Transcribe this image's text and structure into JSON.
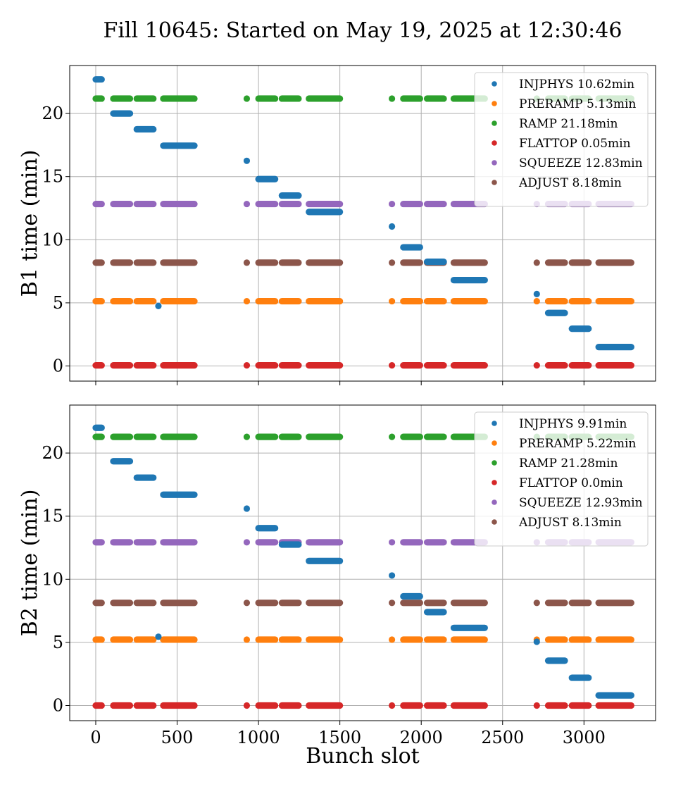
{
  "figure_title": "Fill 10645: Started on May 19, 2025 at 12:30:46",
  "xlabel": "Bunch slot",
  "colors": {
    "INJPHYS": "#1f77b4",
    "PRERAMP": "#ff7f0e",
    "RAMP": "#2ca02c",
    "FLATTOP": "#d62728",
    "SQUEEZE": "#9467bd",
    "ADJUST": "#8c564b"
  },
  "chart_data": [
    {
      "type": "scatter",
      "ylabel": "B1 time (min)",
      "xlim": [
        -160,
        3440
      ],
      "ylim": [
        -1.2,
        23.8
      ],
      "xticks": [
        0,
        500,
        1000,
        1500,
        2000,
        2500,
        3000
      ],
      "yticks": [
        0,
        5,
        10,
        15,
        20
      ],
      "grid": true,
      "legend_position": "upper right",
      "legend": [
        "INJPHYS 10.62min",
        "PRERAMP 5.13min",
        "RAMP 21.18min",
        "FLATTOP 0.05min",
        "SQUEEZE 12.83min",
        "ADJUST 8.18min"
      ],
      "series": [
        {
          "name": "INJPHYS",
          "segments": [
            {
              "x0": 0,
              "x1": 36,
              "y": 22.7
            },
            {
              "x0": 108,
              "x1": 210,
              "y": 20.0
            },
            {
              "x0": 252,
              "x1": 354,
              "y": 18.75
            },
            {
              "x0": 385,
              "x1": 385,
              "y": 4.75
            },
            {
              "x0": 415,
              "x1": 606,
              "y": 17.45
            },
            {
              "x0": 928,
              "x1": 928,
              "y": 16.25
            },
            {
              "x0": 1000,
              "x1": 1102,
              "y": 14.8
            },
            {
              "x0": 1144,
              "x1": 1246,
              "y": 13.5
            },
            {
              "x0": 1310,
              "x1": 1500,
              "y": 12.2
            },
            {
              "x0": 1820,
              "x1": 1820,
              "y": 11.05
            },
            {
              "x0": 1890,
              "x1": 1992,
              "y": 9.4
            },
            {
              "x0": 2036,
              "x1": 2138,
              "y": 8.25
            },
            {
              "x0": 2200,
              "x1": 2390,
              "y": 6.8
            },
            {
              "x0": 2710,
              "x1": 2710,
              "y": 5.7
            },
            {
              "x0": 2780,
              "x1": 2882,
              "y": 4.2
            },
            {
              "x0": 2926,
              "x1": 3028,
              "y": 2.95
            },
            {
              "x0": 3090,
              "x1": 3290,
              "y": 1.5
            }
          ]
        },
        {
          "name": "PRERAMP",
          "y": 5.13
        },
        {
          "name": "RAMP",
          "y": 21.18
        },
        {
          "name": "FLATTOP",
          "y": 0.05
        },
        {
          "name": "SQUEEZE",
          "y": 12.83
        },
        {
          "name": "ADJUST",
          "y": 8.18
        }
      ],
      "train_segments": [
        {
          "x0": 0,
          "x1": 36
        },
        {
          "x0": 108,
          "x1": 210
        },
        {
          "x0": 252,
          "x1": 354
        },
        {
          "x0": 415,
          "x1": 606
        },
        {
          "x0": 928,
          "x1": 928
        },
        {
          "x0": 1000,
          "x1": 1102
        },
        {
          "x0": 1144,
          "x1": 1246
        },
        {
          "x0": 1310,
          "x1": 1500
        },
        {
          "x0": 1820,
          "x1": 1820
        },
        {
          "x0": 1890,
          "x1": 1992
        },
        {
          "x0": 2036,
          "x1": 2138
        },
        {
          "x0": 2200,
          "x1": 2390
        },
        {
          "x0": 2710,
          "x1": 2710
        },
        {
          "x0": 2780,
          "x1": 2882
        },
        {
          "x0": 2926,
          "x1": 3028
        },
        {
          "x0": 3090,
          "x1": 3290
        }
      ]
    },
    {
      "type": "scatter",
      "ylabel": "B2 time (min)",
      "xlim": [
        -160,
        3440
      ],
      "ylim": [
        -1.2,
        23.8
      ],
      "xticks": [
        0,
        500,
        1000,
        1500,
        2000,
        2500,
        3000
      ],
      "yticks": [
        0,
        5,
        10,
        15,
        20
      ],
      "grid": true,
      "legend_position": "upper right",
      "legend": [
        "INJPHYS 9.91min",
        "PRERAMP 5.22min",
        "RAMP 21.28min",
        "FLATTOP 0.0min",
        "SQUEEZE 12.93min",
        "ADJUST 8.13min"
      ],
      "series": [
        {
          "name": "INJPHYS",
          "segments": [
            {
              "x0": 0,
              "x1": 36,
              "y": 22.0
            },
            {
              "x0": 108,
              "x1": 210,
              "y": 19.35
            },
            {
              "x0": 252,
              "x1": 354,
              "y": 18.05
            },
            {
              "x0": 385,
              "x1": 385,
              "y": 5.45
            },
            {
              "x0": 415,
              "x1": 606,
              "y": 16.7
            },
            {
              "x0": 928,
              "x1": 928,
              "y": 15.6
            },
            {
              "x0": 1000,
              "x1": 1102,
              "y": 14.05
            },
            {
              "x0": 1144,
              "x1": 1246,
              "y": 12.75
            },
            {
              "x0": 1310,
              "x1": 1500,
              "y": 11.45
            },
            {
              "x0": 1820,
              "x1": 1820,
              "y": 10.3
            },
            {
              "x0": 1890,
              "x1": 1992,
              "y": 8.65
            },
            {
              "x0": 2036,
              "x1": 2138,
              "y": 7.4
            },
            {
              "x0": 2200,
              "x1": 2390,
              "y": 6.15
            },
            {
              "x0": 2710,
              "x1": 2710,
              "y": 5.05
            },
            {
              "x0": 2780,
              "x1": 2882,
              "y": 3.55
            },
            {
              "x0": 2926,
              "x1": 3028,
              "y": 2.2
            },
            {
              "x0": 3090,
              "x1": 3290,
              "y": 0.8
            }
          ]
        },
        {
          "name": "PRERAMP",
          "y": 5.22
        },
        {
          "name": "RAMP",
          "y": 21.28
        },
        {
          "name": "FLATTOP",
          "y": 0.0
        },
        {
          "name": "SQUEEZE",
          "y": 12.93
        },
        {
          "name": "ADJUST",
          "y": 8.13
        }
      ],
      "train_segments": [
        {
          "x0": 0,
          "x1": 36
        },
        {
          "x0": 108,
          "x1": 210
        },
        {
          "x0": 252,
          "x1": 354
        },
        {
          "x0": 415,
          "x1": 606
        },
        {
          "x0": 928,
          "x1": 928
        },
        {
          "x0": 1000,
          "x1": 1102
        },
        {
          "x0": 1144,
          "x1": 1246
        },
        {
          "x0": 1310,
          "x1": 1500
        },
        {
          "x0": 1820,
          "x1": 1820
        },
        {
          "x0": 1890,
          "x1": 1992
        },
        {
          "x0": 2036,
          "x1": 2138
        },
        {
          "x0": 2200,
          "x1": 2390
        },
        {
          "x0": 2710,
          "x1": 2710
        },
        {
          "x0": 2780,
          "x1": 2882
        },
        {
          "x0": 2926,
          "x1": 3028
        },
        {
          "x0": 3090,
          "x1": 3290
        }
      ]
    }
  ]
}
